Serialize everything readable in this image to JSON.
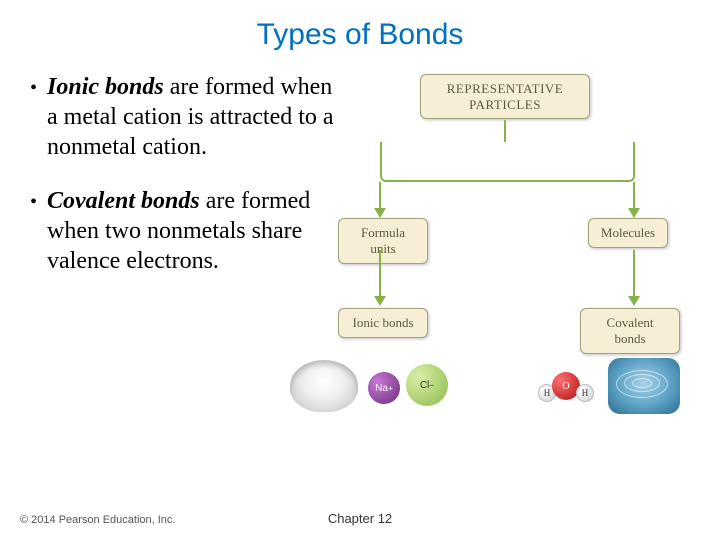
{
  "title": "Types of Bonds",
  "bullets": [
    {
      "bold": "Ionic bonds",
      "rest": " are formed when a metal cation is attracted to a nonmetal cation."
    },
    {
      "bold": "Covalent bonds",
      "rest": " are formed when two nonmetals share valence electrons."
    }
  ],
  "diagram": {
    "root_line1": "REPRESENTATIVE",
    "root_line2": "PARTICLES",
    "formula_units": "Formula units",
    "molecules": "Molecules",
    "ionic_bonds": "Ionic bonds",
    "covalent_bonds": "Covalent bonds",
    "na_label": "Na",
    "na_sup": "+",
    "cl_label": "Cl",
    "cl_sup": "−",
    "h_label": "H",
    "o_label": "O",
    "node_bg": "#f6efd6",
    "node_border": "#9ea77a",
    "arrow_color": "#87b24a"
  },
  "footer": {
    "copyright": "© 2014 Pearson Education, Inc.",
    "chapter": "Chapter 12"
  },
  "colors": {
    "title": "#0070c0",
    "text": "#000000",
    "background": "#ffffff"
  },
  "fonts": {
    "title_family": "Arial",
    "title_size_pt": 22,
    "body_family": "Times New Roman",
    "body_size_pt": 18,
    "footer_size_pt": 8
  }
}
